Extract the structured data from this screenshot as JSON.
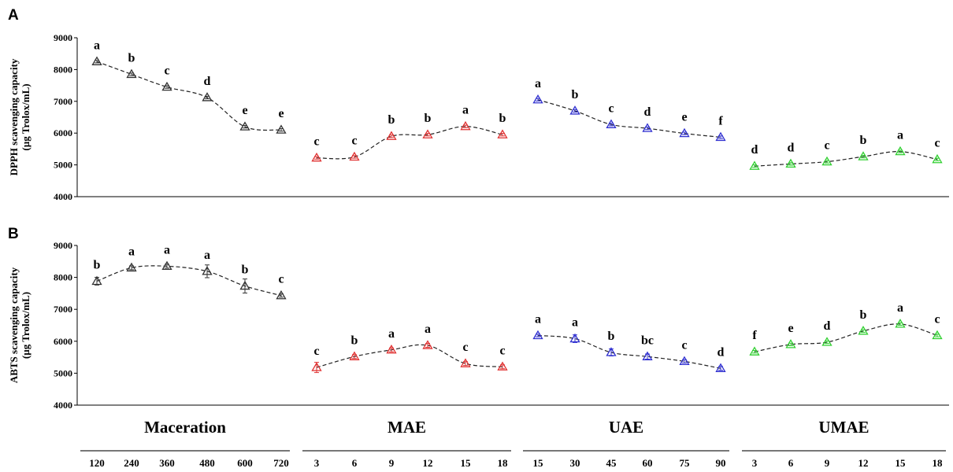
{
  "chart_data": {
    "type": "line",
    "ylim": [
      4000,
      9000
    ],
    "yticks": [
      4000,
      5000,
      6000,
      7000,
      8000,
      9000
    ],
    "groups": [
      {
        "name": "Maceration",
        "x": [
          "120",
          "240",
          "360",
          "480",
          "600",
          "720"
        ],
        "color": "#333333"
      },
      {
        "name": "MAE",
        "x": [
          "3",
          "6",
          "9",
          "12",
          "15",
          "18"
        ],
        "color": "#e03030"
      },
      {
        "name": "UAE",
        "x": [
          "15",
          "30",
          "45",
          "60",
          "75",
          "90"
        ],
        "color": "#3030d0"
      },
      {
        "name": "UMAE",
        "x": [
          "3",
          "6",
          "9",
          "12",
          "15",
          "18"
        ],
        "color": "#30d030"
      }
    ],
    "panels": [
      {
        "letter": "A",
        "ylabel_line1": "DPPH scavenging capacity",
        "ylabel_line2": "(µg Trolox/mL)",
        "series": [
          {
            "values": [
              8250,
              7850,
              7450,
              7120,
              6200,
              6100
            ],
            "errors": [
              40,
              40,
              40,
              40,
              40,
              40
            ],
            "letters": [
              "a",
              "b",
              "c",
              "d",
              "e",
              "e"
            ]
          },
          {
            "values": [
              5220,
              5250,
              5900,
              5950,
              6210,
              5950
            ],
            "errors": [
              40,
              40,
              40,
              40,
              40,
              40
            ],
            "letters": [
              "c",
              "c",
              "b",
              "b",
              "a",
              "b"
            ]
          },
          {
            "values": [
              7050,
              6700,
              6270,
              6150,
              5990,
              5870
            ],
            "errors": [
              40,
              40,
              40,
              40,
              40,
              40
            ],
            "letters": [
              "a",
              "b",
              "c",
              "d",
              "e",
              "f"
            ]
          },
          {
            "values": [
              4960,
              5030,
              5100,
              5260,
              5420,
              5170
            ],
            "errors": [
              40,
              40,
              40,
              40,
              40,
              40
            ],
            "letters": [
              "d",
              "d",
              "c",
              "b",
              "a",
              "c"
            ]
          }
        ]
      },
      {
        "letter": "B",
        "ylabel_line1": "ABTS scavenging capacity",
        "ylabel_line2": "(µg Trolox/mL)",
        "series": [
          {
            "values": [
              7880,
              8300,
              8350,
              8190,
              7730,
              7430
            ],
            "errors": [
              120,
              60,
              60,
              200,
              220,
              50
            ],
            "letters": [
              "b",
              "a",
              "a",
              "a",
              "b",
              "c"
            ]
          },
          {
            "values": [
              5180,
              5520,
              5730,
              5870,
              5300,
              5200
            ],
            "errors": [
              160,
              60,
              60,
              60,
              60,
              60
            ],
            "letters": [
              "c",
              "b",
              "a",
              "a",
              "c",
              "c"
            ]
          },
          {
            "values": [
              6180,
              6080,
              5650,
              5520,
              5370,
              5150
            ],
            "errors": [
              40,
              120,
              110,
              80,
              50,
              60
            ],
            "letters": [
              "a",
              "a",
              "b",
              "bc",
              "c",
              "d"
            ]
          },
          {
            "values": [
              5670,
              5900,
              5970,
              6320,
              6540,
              6180
            ],
            "errors": [
              40,
              40,
              40,
              40,
              40,
              40
            ],
            "letters": [
              "f",
              "e",
              "d",
              "b",
              "a",
              "c"
            ]
          }
        ]
      }
    ]
  }
}
